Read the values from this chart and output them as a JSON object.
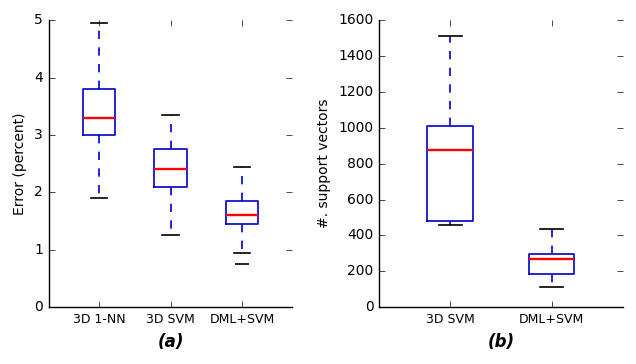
{
  "subplot_a": {
    "ylabel": "Error (percent)",
    "ylim": [
      0,
      5
    ],
    "yticks": [
      0,
      1,
      2,
      3,
      4,
      5
    ],
    "categories": [
      "3D 1-NN",
      "3D SVM",
      "DML+SVM"
    ],
    "boxes": [
      {
        "q1": 3.0,
        "median": 3.3,
        "q3": 3.8,
        "whislo": 1.9,
        "whishi": 4.95
      },
      {
        "q1": 2.1,
        "median": 2.4,
        "q3": 2.75,
        "whislo": 1.25,
        "whishi": 3.35
      },
      {
        "q1": 1.45,
        "median": 1.6,
        "q3": 1.85,
        "whislo": 0.95,
        "whishi": 2.45
      }
    ],
    "fliers": [
      [],
      [],
      [
        0.75
      ]
    ],
    "xlabel": "(a)"
  },
  "subplot_b": {
    "ylabel": "#. support vectors",
    "ylim": [
      0,
      1600
    ],
    "yticks": [
      0,
      200,
      400,
      600,
      800,
      1000,
      1200,
      1400,
      1600
    ],
    "categories": [
      "3D SVM",
      "DML+SVM"
    ],
    "boxes": [
      {
        "q1": 480,
        "median": 875,
        "q3": 1010,
        "whislo": 460,
        "whishi": 1510
      },
      {
        "q1": 185,
        "median": 270,
        "q3": 295,
        "whislo": 110,
        "whishi": 435
      }
    ],
    "fliers": [
      [],
      []
    ],
    "xlabel": "(b)"
  },
  "box_color": "#0000cc",
  "median_color": "#ff0000",
  "whisker_color": "#0000cc",
  "cap_color": "#000000",
  "flier_color": "#000000",
  "linewidth": 1.2,
  "figsize": [
    6.36,
    3.64
  ],
  "dpi": 100
}
